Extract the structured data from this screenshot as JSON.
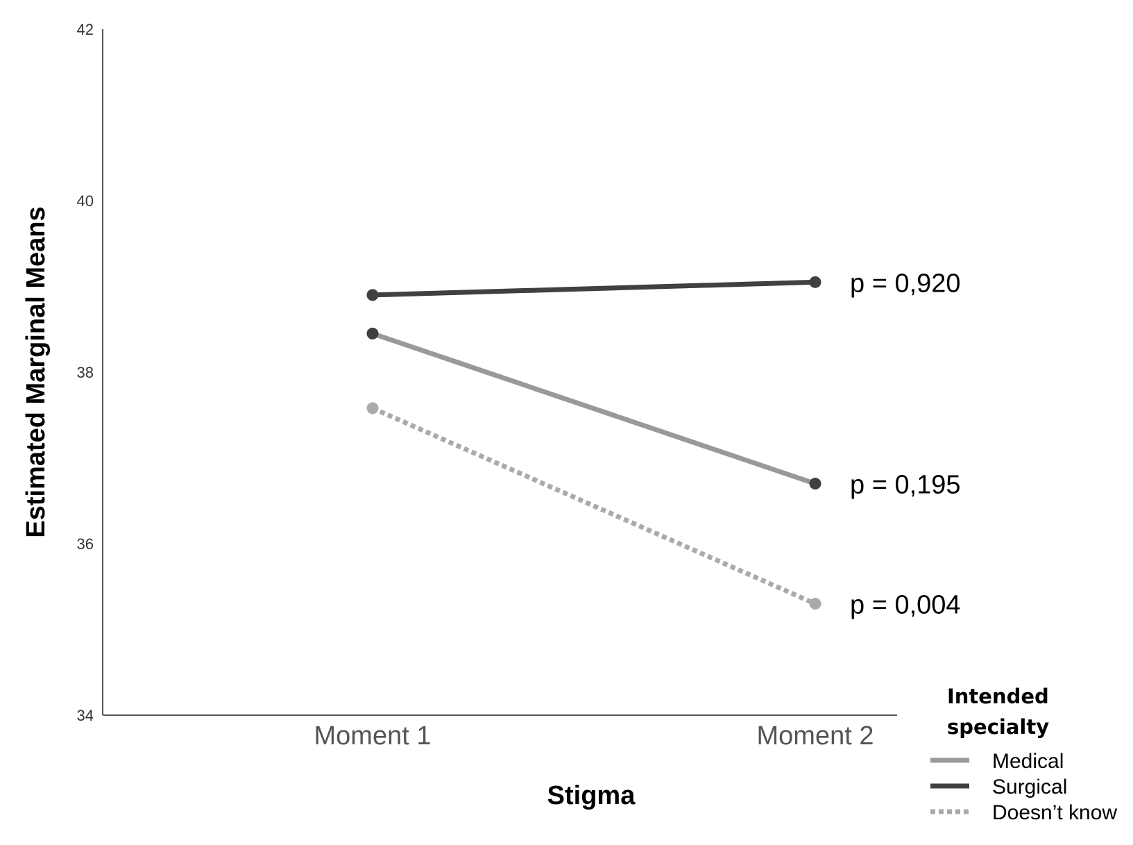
{
  "chart_data": {
    "type": "line",
    "title": "",
    "xlabel": "Stigma",
    "ylabel": "Estimated Marginal Means",
    "ylim": [
      34,
      42
    ],
    "yticks": [
      "34",
      "36",
      "38",
      "40",
      "42"
    ],
    "categories": [
      "Moment 1",
      "Moment 2"
    ],
    "series": [
      {
        "name": "Medical",
        "values": [
          38.45,
          36.7
        ],
        "color": "#999999",
        "dash": "solid"
      },
      {
        "name": "Surgical",
        "values": [
          38.9,
          39.05
        ],
        "color": "#404040",
        "dash": "solid"
      },
      {
        "name": "Doesn’t know",
        "values": [
          37.58,
          35.3
        ],
        "color": "#aaaaaa",
        "dash": "dotted"
      }
    ],
    "annotations": [
      {
        "text": "p = 0,920",
        "series": "Surgical"
      },
      {
        "text": "p = 0,195",
        "series": "Medical"
      },
      {
        "text": "p = 0,004",
        "series": "Doesn’t know"
      }
    ],
    "legend": {
      "title_lines": [
        "Intended",
        "specialty"
      ],
      "placement": "bottom-right"
    },
    "grid": false
  }
}
